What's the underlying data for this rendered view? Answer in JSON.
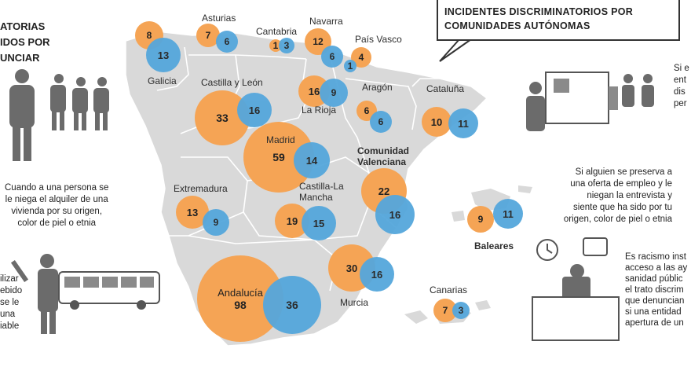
{
  "title": {
    "line1": "INCIDENTES DISCRIMINATORIOS POR",
    "line2": "COMUNIDADES AUTÓNOMAS"
  },
  "left_heading": [
    "ATORIAS",
    "IDOS POR",
    "UNCIAR"
  ],
  "left_text_1": [
    "Cuando a una persona se",
    "le niega el alquiler de una",
    "vivienda por su origen,",
    "color de piel o etnia"
  ],
  "left_text_2": [
    "ilizar",
    "ebido",
    "se le",
    "una",
    "iable"
  ],
  "right_text_1": [
    "Si e",
    "ent",
    "dis",
    "per"
  ],
  "right_text_2": [
    "Si alguien se preserva a",
    "una oferta de empleo y le",
    "niegan la entrevista y",
    "siente que ha sido por tu",
    "origen, color de piel o etnia"
  ],
  "right_text_3": [
    "Es racismo inst",
    "acceso a las ay",
    "sanidad públic",
    "el trato discrim",
    "que denuncian",
    "si una entidad",
    "apertura de un"
  ],
  "colors": {
    "orange": "#f5a455",
    "blue": "#55a7dc",
    "map": "#d9d9d9"
  },
  "regions": [
    {
      "name": "Galicia",
      "orange": 8,
      "blue": 13
    },
    {
      "name": "Asturias",
      "orange": 7,
      "blue": 6
    },
    {
      "name": "Cantabria",
      "orange": 1,
      "blue": 3
    },
    {
      "name": "Navarra",
      "orange": 12,
      "blue": 6
    },
    {
      "name": "País Vasco",
      "orange": 4,
      "blue": 1
    },
    {
      "name": "Castilla y León",
      "orange": 33,
      "blue": 16
    },
    {
      "name": "La Rioja",
      "orange": 16,
      "blue": 9
    },
    {
      "name": "Aragón",
      "orange": 6,
      "blue": 6
    },
    {
      "name": "Cataluña",
      "orange": 10,
      "blue": 11
    },
    {
      "name": "Madrid",
      "orange": 59,
      "blue": 14
    },
    {
      "name": "Comunidad Valenciana",
      "orange": 22,
      "blue": 16
    },
    {
      "name": "Extremadura",
      "orange": 13,
      "blue": 9
    },
    {
      "name": "Castilla-La Mancha",
      "orange": 19,
      "blue": 15
    },
    {
      "name": "Baleares",
      "orange": 9,
      "blue": 11
    },
    {
      "name": "Murcia",
      "orange": 30,
      "blue": 16
    },
    {
      "name": "Andalucía",
      "orange": 98,
      "blue": 36
    },
    {
      "name": "Canarias",
      "orange": 7,
      "blue": 3
    }
  ]
}
